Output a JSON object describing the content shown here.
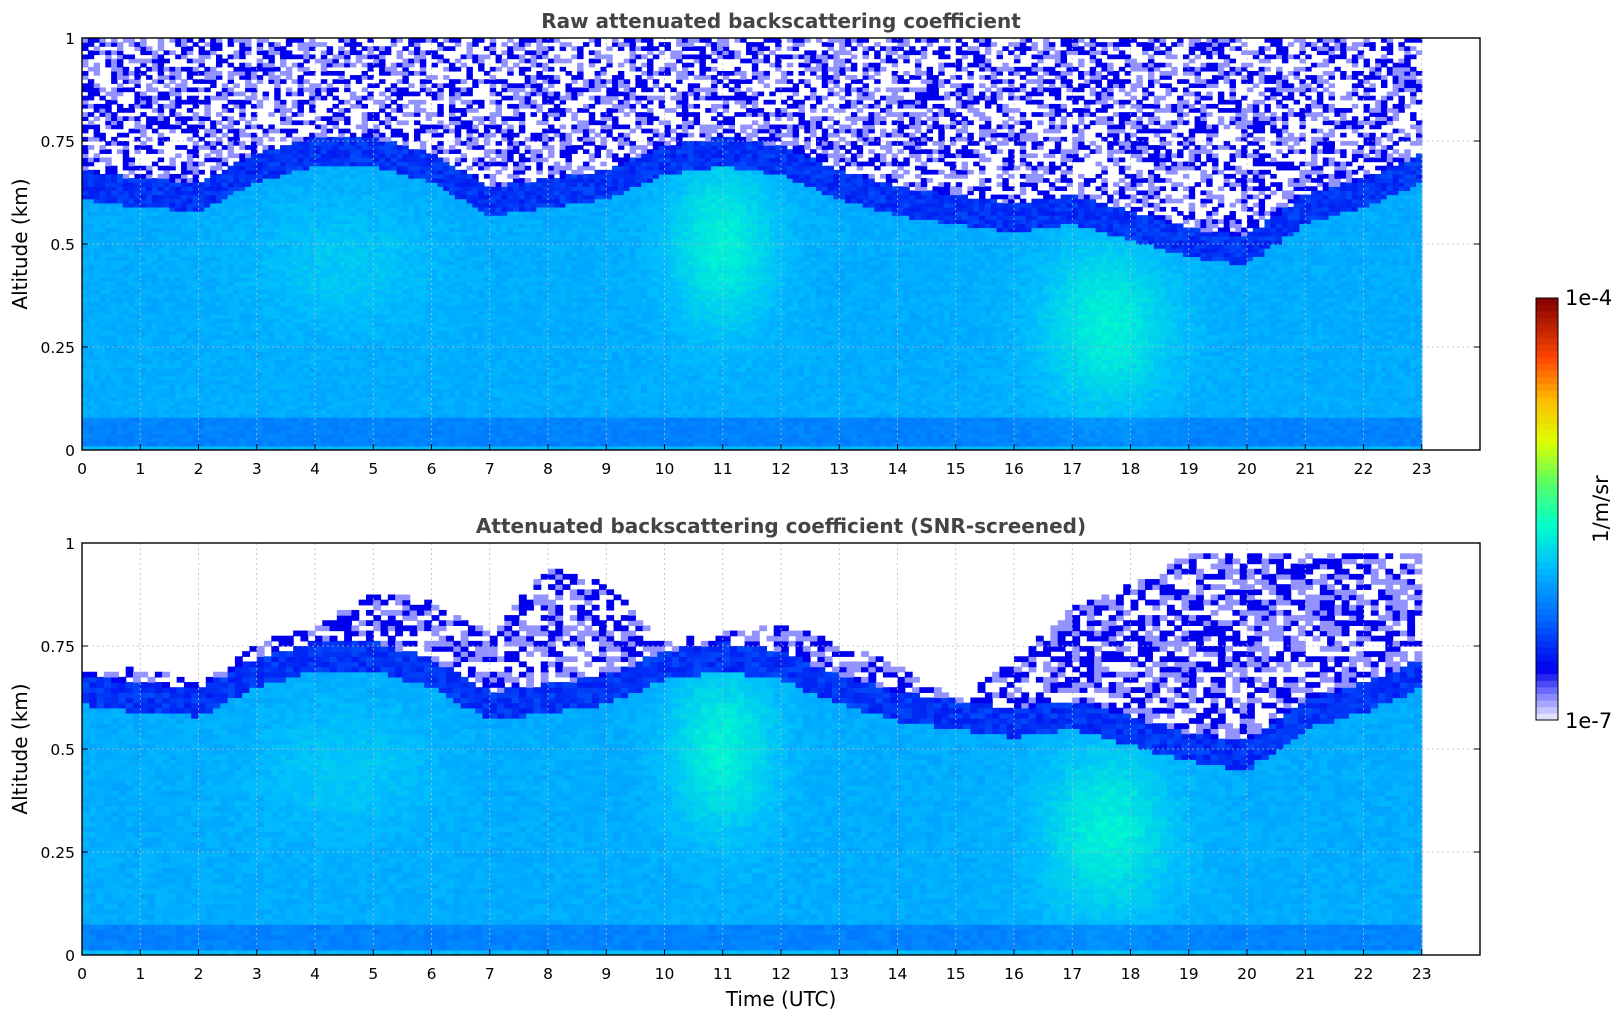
{
  "chart_data": [
    {
      "type": "heatmap",
      "title": "Raw attenuated backscattering coefficient",
      "xlabel": "",
      "ylabel": "Altitude (km)",
      "xlim": [
        0,
        24
      ],
      "ylim": [
        0,
        1
      ],
      "x_ticks": [
        "0",
        "1",
        "2",
        "3",
        "4",
        "5",
        "6",
        "7",
        "8",
        "9",
        "10",
        "11",
        "12",
        "13",
        "14",
        "15",
        "16",
        "17",
        "18",
        "19",
        "20",
        "21",
        "22",
        "23"
      ],
      "y_ticks": [
        "0",
        "0.25",
        "0.5",
        "0.75",
        "1"
      ],
      "y_tick_values": [
        0,
        0.25,
        0.5,
        0.75,
        1
      ],
      "data_extent_x": [
        0,
        23
      ],
      "grid": true,
      "screened": false,
      "boundary_layer_top_km": {
        "x": [
          0,
          1,
          2,
          3,
          4,
          5,
          6,
          7,
          8,
          9,
          10,
          11,
          12,
          13,
          14,
          15,
          16,
          17,
          18,
          19,
          20,
          21,
          22,
          23
        ],
        "y": [
          0.66,
          0.64,
          0.63,
          0.7,
          0.74,
          0.74,
          0.7,
          0.62,
          0.64,
          0.66,
          0.72,
          0.74,
          0.72,
          0.66,
          0.62,
          0.6,
          0.58,
          0.6,
          0.56,
          0.52,
          0.5,
          0.6,
          0.64,
          0.7
        ]
      },
      "log10_backscatter_profile": [
        {
          "alt_km": 0.0,
          "log10_beta": -5.8
        },
        {
          "alt_km": 0.05,
          "log10_beta": -5.9
        },
        {
          "alt_km": 0.3,
          "log10_beta": -5.7
        },
        {
          "alt_km": 0.5,
          "log10_beta": -5.75
        },
        {
          "alt_km": 0.65,
          "log10_beta": -6.3
        },
        {
          "alt_km": 0.85,
          "log10_beta": -6.6
        },
        {
          "alt_km": 1.0,
          "log10_beta": -6.8
        }
      ]
    },
    {
      "type": "heatmap",
      "title": "Attenuated backscattering coefficient (SNR-screened)",
      "xlabel": "Time (UTC)",
      "ylabel": "Altitude (km)",
      "xlim": [
        0,
        24
      ],
      "ylim": [
        0,
        1
      ],
      "x_ticks": [
        "0",
        "1",
        "2",
        "3",
        "4",
        "5",
        "6",
        "7",
        "8",
        "9",
        "10",
        "11",
        "12",
        "13",
        "14",
        "15",
        "16",
        "17",
        "18",
        "19",
        "20",
        "21",
        "22",
        "23"
      ],
      "y_ticks": [
        "0",
        "0.25",
        "0.5",
        "0.75",
        "1"
      ],
      "y_tick_values": [
        0,
        0.25,
        0.5,
        0.75,
        1
      ],
      "data_extent_x": [
        0,
        23
      ],
      "grid": true,
      "screened": true,
      "screened_top_km": {
        "x": [
          0,
          1,
          2,
          3,
          4,
          5,
          6,
          7,
          8,
          9,
          10,
          11,
          12,
          13,
          14,
          15,
          16,
          17,
          18,
          19,
          20,
          21,
          22,
          23
        ],
        "y": [
          0.68,
          0.7,
          0.66,
          0.76,
          0.8,
          0.88,
          0.86,
          0.78,
          0.94,
          0.9,
          0.76,
          0.78,
          0.8,
          0.76,
          0.7,
          0.62,
          0.72,
          0.84,
          0.9,
          0.97,
          0.98,
          0.98,
          0.98,
          0.98
        ]
      },
      "boundary_layer_top_km": {
        "x": [
          0,
          1,
          2,
          3,
          4,
          5,
          6,
          7,
          8,
          9,
          10,
          11,
          12,
          13,
          14,
          15,
          16,
          17,
          18,
          19,
          20,
          21,
          22,
          23
        ],
        "y": [
          0.66,
          0.64,
          0.63,
          0.7,
          0.74,
          0.74,
          0.7,
          0.62,
          0.64,
          0.66,
          0.72,
          0.74,
          0.72,
          0.66,
          0.62,
          0.6,
          0.58,
          0.6,
          0.56,
          0.52,
          0.5,
          0.6,
          0.64,
          0.7
        ]
      }
    }
  ],
  "colorbar": {
    "label": "1/m/sr",
    "max_label": "1e-4",
    "min_label": "1e-7",
    "range": [
      1e-07,
      0.0001
    ],
    "scale": "log",
    "colormap": "jet",
    "colors": [
      "#eeeeff",
      "#0000ff",
      "#00aaff",
      "#00ffcc",
      "#ffff00",
      "#ff6600",
      "#800000"
    ]
  }
}
